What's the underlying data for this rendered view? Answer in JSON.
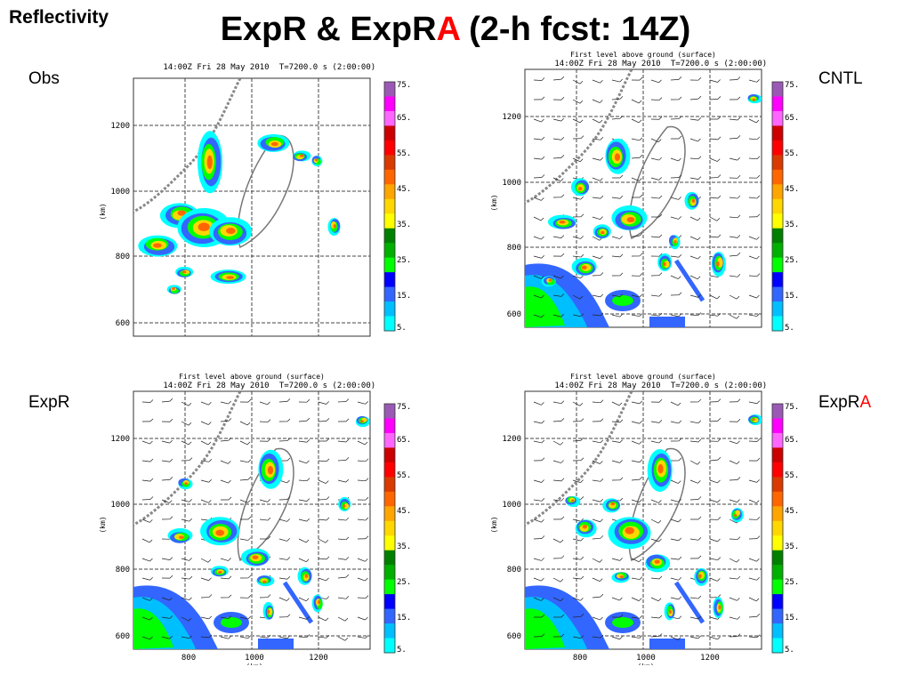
{
  "slide": {
    "corner_label": "Reflectivity",
    "title_part1": "ExpR & ExpR",
    "title_red": "A",
    "title_part2": " (2-h fcst: 14Z)"
  },
  "panel_labels": {
    "obs": "Obs",
    "cntl": "CNTL",
    "expr": "ExpR",
    "expra_base": "ExpR",
    "expra_red": "A"
  },
  "plot_text": {
    "time_stamp": "14:00Z Fri 28 May 2010",
    "fcst_time": "T=7200.0 s (2:00:00)",
    "level_label": "First level above ground (surface)",
    "y_axis_label": "(km)",
    "x_axis_label": "(km)",
    "y_ticks": [
      "1200",
      "1000",
      "800",
      "600"
    ],
    "x_ticks": [
      "800",
      "1000",
      "1200"
    ]
  },
  "colorbar": {
    "labels": [
      "75.",
      "65.",
      "55.",
      "45.",
      "35.",
      "25.",
      "15.",
      "5."
    ],
    "colors": [
      "#9b59b6",
      "#ff00ff",
      "#ff66ff",
      "#cc0000",
      "#ff0000",
      "#d83a00",
      "#ff6600",
      "#ffa500",
      "#ffd700",
      "#ffff00",
      "#008000",
      "#00b000",
      "#00ff00",
      "#0000ff",
      "#3366ff",
      "#00bfff",
      "#00ffff"
    ]
  }
}
